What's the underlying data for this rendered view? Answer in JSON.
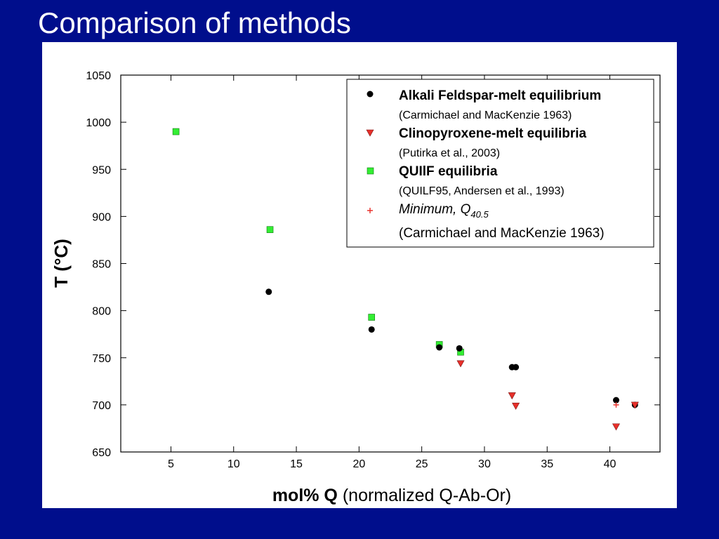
{
  "slide": {
    "title": "Comparison of methods"
  },
  "colors": {
    "background": "#000e8c",
    "panel": "#ffffff",
    "feldspar": "#000000",
    "clinopyroxene": "#e8302a",
    "quilf": "#33ee33",
    "minimum": "#e8302a"
  },
  "chart_data": {
    "type": "scatter",
    "ylabel": "T (°C)",
    "xlabel_bold": "mol% Q",
    "xlabel_rest": "(normalized Q-Ab-Or)",
    "xlim": [
      1,
      44
    ],
    "ylim": [
      650,
      1050
    ],
    "xticks": [
      5,
      10,
      15,
      20,
      25,
      30,
      35,
      40
    ],
    "yticks": [
      650,
      700,
      750,
      800,
      850,
      900,
      950,
      1000,
      1050
    ],
    "grid": false,
    "legend_position": "top-right",
    "series": [
      {
        "key": "feldspar",
        "marker": "circle",
        "name": "Alkali Feldspar-melt equilibrium",
        "source": "(Carmichael and MacKenzie 1963)",
        "points": [
          [
            12.8,
            820
          ],
          [
            21,
            780
          ],
          [
            26.4,
            761
          ],
          [
            28,
            760
          ],
          [
            32.2,
            740
          ],
          [
            32.5,
            740
          ],
          [
            40.5,
            705
          ],
          [
            42,
            700
          ]
        ]
      },
      {
        "key": "clinopyroxene",
        "marker": "triangle-down",
        "name": "Clinopyroxene-melt equilibria",
        "source": "(Putirka et al., 2003)",
        "points": [
          [
            28.1,
            744
          ],
          [
            32.2,
            710
          ],
          [
            32.5,
            699
          ],
          [
            40.5,
            677
          ],
          [
            42,
            700
          ]
        ]
      },
      {
        "key": "quilf",
        "marker": "square",
        "name": "QUIlF equilibria",
        "source": "(QUILF95, Andersen et al., 1993)",
        "points": [
          [
            5.4,
            990
          ],
          [
            12.9,
            886
          ],
          [
            21,
            793
          ],
          [
            26.4,
            764
          ],
          [
            28.1,
            756
          ]
        ]
      },
      {
        "key": "minimum",
        "marker": "plus",
        "name": "Minimum, Q",
        "name_sub": "40.5",
        "source": "(Carmichael and MacKenzie 1963)",
        "points": [
          [
            40.5,
            700
          ]
        ]
      }
    ]
  }
}
